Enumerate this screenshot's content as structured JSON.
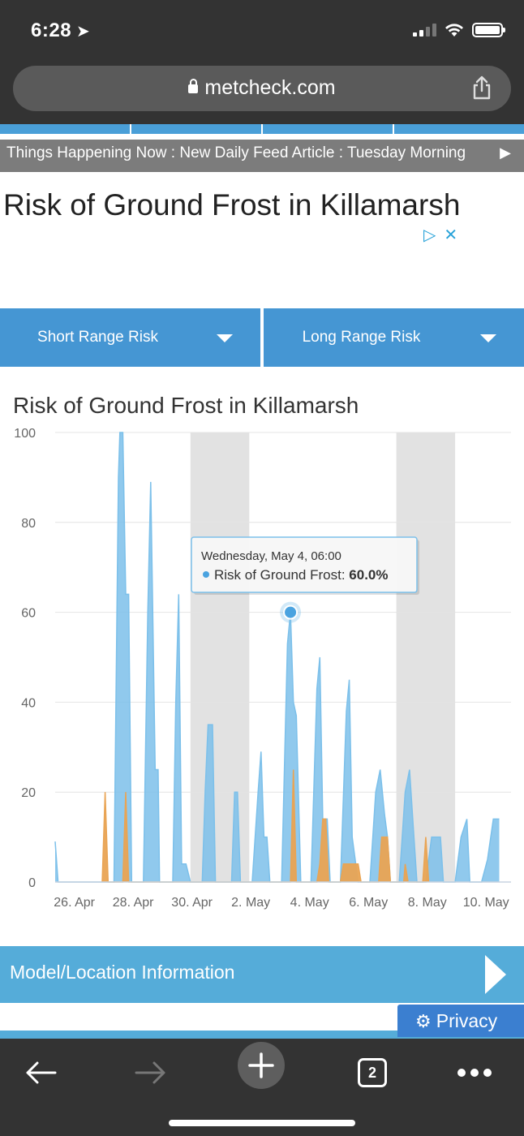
{
  "status_bar": {
    "time": "6:28"
  },
  "browser": {
    "url": "metcheck.com",
    "tab_count": "2"
  },
  "ticker": {
    "text": "Things Happening Now : New Daily Feed Article : Tuesday Morning",
    "arrow": "▶"
  },
  "page": {
    "title": "Risk of Ground Frost in Killamarsh"
  },
  "risk_tabs": [
    {
      "label": "Short Range Risk"
    },
    {
      "label": "Long Range Risk"
    }
  ],
  "chart_data": {
    "type": "area",
    "title": "Risk of Ground Frost in Killamarsh",
    "xlabel": "",
    "ylabel": "",
    "ylim": [
      0,
      100
    ],
    "y_ticks": [
      0,
      20,
      40,
      60,
      80,
      100
    ],
    "x_tick_labels": [
      "26. Apr",
      "28. Apr",
      "30. Apr",
      "2. May",
      "4. May",
      "6. May",
      "8. May",
      "10. May"
    ],
    "x_tick_days": [
      0,
      2,
      4,
      6,
      8,
      10,
      12,
      14
    ],
    "x_range_days": [
      -0.1,
      15.4
    ],
    "weekend_bands_days": [
      [
        4.5,
        6.5
      ],
      [
        11.5,
        13.5
      ]
    ],
    "colors": {
      "frost": "#7cc0ea",
      "other": "#e9a454",
      "band": "#e2e2e2"
    },
    "series": [
      {
        "name": "Risk of Ground Frost",
        "points": [
          [
            -0.1,
            9
          ],
          [
            0,
            0
          ],
          [
            1.5,
            0
          ],
          [
            1.9,
            0
          ],
          [
            2.05,
            90
          ],
          [
            2.1,
            100
          ],
          [
            2.2,
            100
          ],
          [
            2.3,
            64
          ],
          [
            2.4,
            64
          ],
          [
            2.5,
            0
          ],
          [
            2.9,
            0
          ],
          [
            3.05,
            60
          ],
          [
            3.15,
            89
          ],
          [
            3.3,
            25
          ],
          [
            3.4,
            25
          ],
          [
            3.45,
            0
          ],
          [
            3.9,
            0
          ],
          [
            4.0,
            40
          ],
          [
            4.1,
            64
          ],
          [
            4.2,
            4
          ],
          [
            4.35,
            4
          ],
          [
            4.5,
            0
          ],
          [
            4.9,
            0
          ],
          [
            5.0,
            20
          ],
          [
            5.1,
            35
          ],
          [
            5.25,
            35
          ],
          [
            5.35,
            0
          ],
          [
            5.9,
            0
          ],
          [
            6.0,
            20
          ],
          [
            6.1,
            20
          ],
          [
            6.2,
            0
          ],
          [
            6.6,
            0
          ],
          [
            6.8,
            20
          ],
          [
            6.9,
            29
          ],
          [
            7.0,
            10
          ],
          [
            7.1,
            10
          ],
          [
            7.2,
            0
          ],
          [
            7.6,
            0
          ],
          [
            7.8,
            53
          ],
          [
            7.9,
            60
          ],
          [
            8.0,
            40
          ],
          [
            8.1,
            37
          ],
          [
            8.25,
            0
          ],
          [
            8.6,
            0
          ],
          [
            8.8,
            43
          ],
          [
            8.9,
            50
          ],
          [
            9.0,
            14
          ],
          [
            9.15,
            14
          ],
          [
            9.25,
            0
          ],
          [
            9.6,
            0
          ],
          [
            9.8,
            38
          ],
          [
            9.9,
            45
          ],
          [
            10.0,
            10
          ],
          [
            10.2,
            0
          ],
          [
            10.6,
            0
          ],
          [
            10.8,
            20
          ],
          [
            10.95,
            25
          ],
          [
            11.1,
            15
          ],
          [
            11.2,
            10
          ],
          [
            11.3,
            0
          ],
          [
            11.6,
            0
          ],
          [
            11.8,
            20
          ],
          [
            11.95,
            25
          ],
          [
            12.1,
            10
          ],
          [
            12.2,
            0
          ],
          [
            12.5,
            0
          ],
          [
            12.7,
            10
          ],
          [
            13.0,
            10
          ],
          [
            13.1,
            0
          ],
          [
            13.5,
            0
          ],
          [
            13.7,
            10
          ],
          [
            13.9,
            14
          ],
          [
            14.0,
            0
          ],
          [
            14.4,
            0
          ],
          [
            14.6,
            5
          ],
          [
            14.8,
            14
          ],
          [
            15.0,
            14
          ]
        ]
      },
      {
        "name": "",
        "points": [
          [
            1.5,
            0
          ],
          [
            1.6,
            20
          ],
          [
            1.7,
            0
          ],
          [
            2.2,
            0
          ],
          [
            2.3,
            20
          ],
          [
            2.4,
            0
          ],
          [
            7.9,
            0
          ],
          [
            8.0,
            25
          ],
          [
            8.1,
            0
          ],
          [
            8.8,
            0
          ],
          [
            8.9,
            4
          ],
          [
            9.0,
            14
          ],
          [
            9.1,
            14
          ],
          [
            9.2,
            0
          ],
          [
            9.6,
            0
          ],
          [
            9.7,
            4
          ],
          [
            10.2,
            4
          ],
          [
            10.3,
            0
          ],
          [
            10.9,
            0
          ],
          [
            11.0,
            10
          ],
          [
            11.2,
            10
          ],
          [
            11.3,
            0
          ],
          [
            11.75,
            0
          ],
          [
            11.8,
            4
          ],
          [
            11.9,
            0
          ],
          [
            12.4,
            0
          ],
          [
            12.5,
            10
          ],
          [
            12.6,
            0
          ]
        ]
      }
    ],
    "tooltip": {
      "date": "Wednesday, May 4, 06:00",
      "series_name": "Risk of Ground Frost:",
      "value": "60.0%",
      "point": [
        7.9,
        60
      ]
    }
  },
  "model_section": {
    "label": "Model/Location Information"
  },
  "privacy": {
    "label": "Privacy"
  }
}
